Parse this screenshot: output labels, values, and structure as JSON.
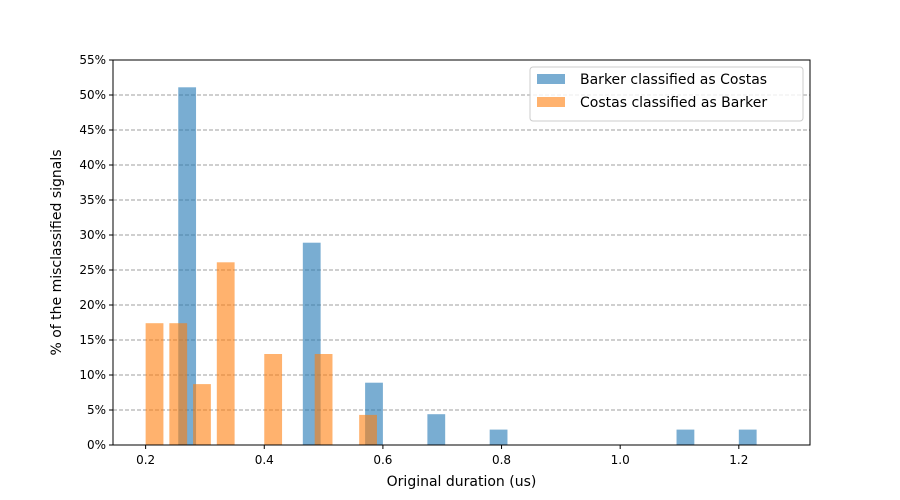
{
  "chart_data": {
    "type": "bar",
    "xlabel": "Original duration (us)",
    "ylabel": "% of the misclassified signals",
    "xlim": [
      0.145,
      1.32
    ],
    "ylim": [
      0,
      55
    ],
    "xticks": [
      0.2,
      0.4,
      0.6,
      0.8,
      1.0,
      1.2
    ],
    "xtick_labels": [
      "0.2",
      "0.4",
      "0.6",
      "0.8",
      "1.0",
      "1.2"
    ],
    "yticks": [
      0,
      5,
      10,
      15,
      20,
      25,
      30,
      35,
      40,
      45,
      50,
      55
    ],
    "ytick_labels": [
      "0%",
      "5%",
      "10%",
      "15%",
      "20%",
      "25%",
      "30%",
      "35%",
      "40%",
      "45%",
      "50%",
      "55%"
    ],
    "grid": "y-dashed",
    "legend_position": "top-right",
    "bar_width": 0.03,
    "series": [
      {
        "name": "Barker classified as Costas",
        "color": "#1f77b4",
        "opacity": 0.6,
        "points": [
          {
            "x": 0.27,
            "y": 51.1
          },
          {
            "x": 0.48,
            "y": 28.9
          },
          {
            "x": 0.585,
            "y": 8.9
          },
          {
            "x": 0.69,
            "y": 4.4
          },
          {
            "x": 0.795,
            "y": 2.2
          },
          {
            "x": 1.11,
            "y": 2.2
          },
          {
            "x": 1.215,
            "y": 2.2
          }
        ]
      },
      {
        "name": "Costas classified as Barker",
        "color": "#ff7f0e",
        "opacity": 0.6,
        "points": [
          {
            "x": 0.215,
            "y": 17.4
          },
          {
            "x": 0.255,
            "y": 17.4
          },
          {
            "x": 0.295,
            "y": 8.7
          },
          {
            "x": 0.335,
            "y": 26.1
          },
          {
            "x": 0.415,
            "y": 13.0
          },
          {
            "x": 0.5,
            "y": 13.0
          },
          {
            "x": 0.575,
            "y": 4.3
          }
        ]
      }
    ]
  }
}
